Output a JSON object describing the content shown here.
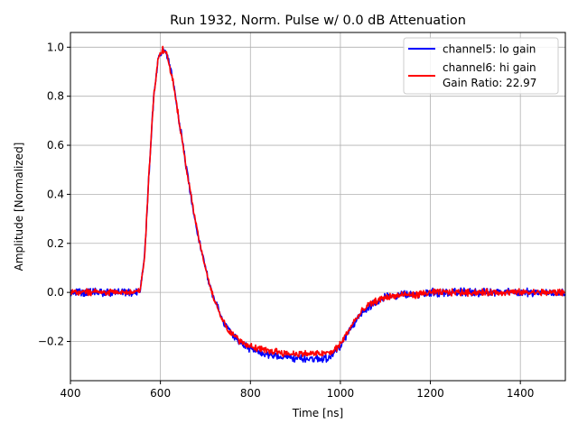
{
  "chart_data": {
    "type": "line",
    "title": "Run 1932, Norm. Pulse w/ 0.0 dB Attenuation",
    "xlabel": "Time [ns]",
    "ylabel": "Amplitude [Normalized]",
    "xlim": [
      400,
      1500
    ],
    "ylim": [
      -0.36,
      1.06
    ],
    "xticks": [
      400,
      600,
      800,
      1000,
      1200,
      1400
    ],
    "xtick_labels": [
      "400",
      "600",
      "800",
      "1000",
      "1200",
      "1400"
    ],
    "yticks": [
      -0.2,
      0.0,
      0.2,
      0.4,
      0.6,
      0.8,
      1.0
    ],
    "ytick_labels": [
      "−0.2",
      "0.0",
      "0.2",
      "0.4",
      "0.6",
      "0.8",
      "1.0"
    ],
    "grid": true,
    "legend_position": "top-right",
    "legend_lines": [
      [
        "channel5: lo gain"
      ],
      [
        "channel6: hi gain",
        "Gain Ratio: 22.97"
      ]
    ],
    "x": [
      400,
      450,
      500,
      540,
      555,
      565,
      575,
      585,
      595,
      605,
      612,
      620,
      630,
      640,
      650,
      660,
      670,
      680,
      690,
      700,
      710,
      720,
      735,
      750,
      765,
      780,
      800,
      820,
      840,
      860,
      880,
      900,
      920,
      940,
      960,
      980,
      990,
      1000,
      1010,
      1020,
      1030,
      1045,
      1060,
      1080,
      1100,
      1120,
      1140,
      1170,
      1200,
      1250,
      1300,
      1350,
      1400,
      1450,
      1500
    ],
    "series": [
      {
        "name": "channel5: lo gain",
        "color": "#0000ff",
        "values": [
          0.0,
          0.0,
          0.0,
          0.0,
          0.01,
          0.15,
          0.5,
          0.8,
          0.95,
          0.99,
          0.98,
          0.93,
          0.84,
          0.72,
          0.6,
          0.48,
          0.37,
          0.27,
          0.18,
          0.1,
          0.03,
          -0.03,
          -0.1,
          -0.15,
          -0.18,
          -0.21,
          -0.23,
          -0.25,
          -0.25,
          -0.26,
          -0.26,
          -0.27,
          -0.27,
          -0.27,
          -0.27,
          -0.26,
          -0.24,
          -0.22,
          -0.19,
          -0.16,
          -0.13,
          -0.09,
          -0.06,
          -0.04,
          -0.02,
          -0.015,
          -0.01,
          -0.01,
          0.0,
          0.0,
          0.0,
          0.0,
          0.0,
          0.0,
          0.0
        ],
        "noise": 0.013
      },
      {
        "name": "channel6: hi gain",
        "color": "#ff0000",
        "values": [
          0.0,
          0.0,
          0.0,
          0.0,
          0.01,
          0.15,
          0.5,
          0.8,
          0.95,
          0.99,
          0.98,
          0.93,
          0.84,
          0.72,
          0.6,
          0.48,
          0.37,
          0.27,
          0.18,
          0.1,
          0.03,
          -0.03,
          -0.1,
          -0.15,
          -0.18,
          -0.2,
          -0.22,
          -0.23,
          -0.24,
          -0.24,
          -0.25,
          -0.25,
          -0.25,
          -0.25,
          -0.25,
          -0.245,
          -0.23,
          -0.21,
          -0.18,
          -0.15,
          -0.12,
          -0.085,
          -0.055,
          -0.035,
          -0.02,
          -0.015,
          -0.01,
          -0.01,
          0.0,
          0.0,
          0.0,
          0.0,
          0.0,
          0.0,
          0.0
        ],
        "noise": 0.011
      }
    ]
  }
}
